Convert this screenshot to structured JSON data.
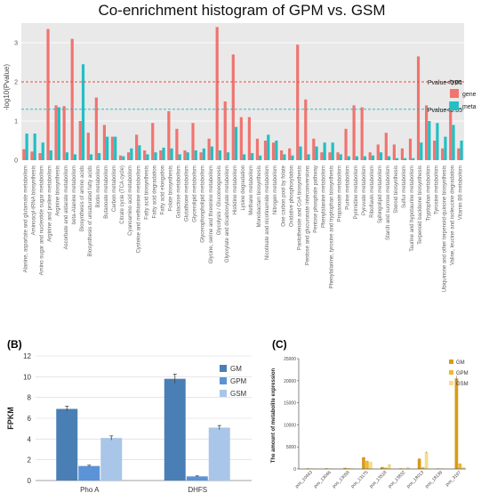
{
  "colors": {
    "gene": "#f07470",
    "meta": "#22bfc4",
    "panel_bg": "#e9e9e9",
    "line_red": "#e84a44",
    "line_teal": "#1fb3b8",
    "GM": "#4a7fb5",
    "GPM": "#5b93d6",
    "GSM": "#a9c6e8",
    "c_GM": "#d89a1a",
    "c_GPM": "#f0b82e",
    "c_GSM": "#f8dc8a"
  },
  "chart_data": [
    {
      "type": "bar",
      "panel": "A",
      "title": "Co-enrichment histogram of GPM vs. GSM",
      "ylabel": "-log10(Pvalue)",
      "xlabel": "",
      "ylim": [
        0,
        3.5
      ],
      "yticks": [
        "0",
        "1",
        "2",
        "3"
      ],
      "grid": true,
      "legend": {
        "title": "type",
        "placement": "right"
      },
      "thresholds": [
        {
          "label": "Pvalue<0.01",
          "value": 2.0,
          "color_key": "line_red"
        },
        {
          "label": "Pvalue<0.05",
          "value": 1.3,
          "color_key": "line_teal"
        }
      ],
      "categories": [
        "Alanine, aspartate and glutamate metabolism",
        "Aminoacyl-tRNA biosynthesis",
        "Amino sugar and nucleotide sugar metabolism",
        "Arginine and proline metabolism",
        "Arginine biosynthesis",
        "Ascorbate and aldarate metabolism",
        "beta-Alanine metabolism",
        "Biosynthesis of amino acids",
        "Biosynthesis of unsaturated fatty acids",
        "Biotin metabolism",
        "Butanoate metabolism",
        "Carbon metabolism",
        "Citrate cycle (TCA cycle)",
        "Cyanoamino acid metabolism",
        "Cysteine and methionine metabolism",
        "Fatty acid biosynthesis",
        "Fatty acid degradation",
        "Fatty acid elongation",
        "Folate biosynthesis",
        "Galactose metabolism",
        "Glutathione metabolism",
        "Glycerolipid metabolism",
        "Glycerophospholipid metabolism",
        "Glycine, serine and threonine metabolism",
        "Glycolysis / Gluconeogenesis",
        "Glyoxylate and dicarboxylate metabolism",
        "Histidine metabolism",
        "Lysine degradation",
        "Methane metabolism",
        "Monobactam biosynthesis",
        "Nicotinate and nicotinamide metabolism",
        "Nitrogen metabolism",
        "One carbon pool by folate",
        "Oxidative phosphorylation",
        "Pantothenate and CoA biosynthesis",
        "Pentose and glucuronate interconversions",
        "Pentose phosphate pathway",
        "Phenylalanine metabolism",
        "Phenylalanine, tyrosine and tryptophan biosynthesis",
        "Propanoate metabolism",
        "Purine metabolism",
        "Pyrimidine metabolism",
        "Pyruvate metabolism",
        "Riboflavin metabolism",
        "Sphingolipid metabolism",
        "Starch and sucrose metabolism",
        "Steroid biosynthesis",
        "Sulfur metabolism",
        "Taurine and hypotaurine metabolism",
        "Terpenoid backbone biosynthesis",
        "Tryptophan metabolism",
        "Tyrosine metabolism",
        "Ubiquinone and other terpenoid-quinone biosynthesis",
        "Valine, leucine and isoleucine degradation",
        "Vitamin B6 metabolism"
      ],
      "series": [
        {
          "name": "gene",
          "color_key": "gene",
          "values": [
            0.28,
            0.22,
            0.18,
            3.35,
            1.4,
            1.38,
            3.1,
            1.0,
            0.7,
            1.6,
            0.9,
            0.6,
            0.12,
            0.2,
            0.65,
            0.25,
            0.95,
            0.25,
            1.25,
            0.8,
            0.25,
            0.95,
            0.2,
            0.55,
            3.4,
            1.5,
            2.7,
            1.1,
            1.1,
            0.55,
            0.5,
            0.45,
            0.25,
            0.3,
            2.95,
            1.55,
            0.55,
            0.2,
            0.2,
            0.2,
            0.8,
            1.4,
            1.35,
            0.2,
            0.4,
            0.7,
            0.4,
            0.3,
            0.55,
            2.65,
            1.4,
            0.5,
            0.3,
            1.5,
            0.3
          ]
        },
        {
          "name": "meta",
          "color_key": "meta",
          "values": [
            0.68,
            0.68,
            0.45,
            0.25,
            1.35,
            0.2,
            0.15,
            2.45,
            0.15,
            0.18,
            0.6,
            0.6,
            0.1,
            0.3,
            0.38,
            0.15,
            0.2,
            0.32,
            0.3,
            0.15,
            0.2,
            0.25,
            0.3,
            0.35,
            0.25,
            0.2,
            0.85,
            0.15,
            0.18,
            0.12,
            0.65,
            0.5,
            0.15,
            0.12,
            0.35,
            0.15,
            0.35,
            0.45,
            0.45,
            0.15,
            0.1,
            0.1,
            0.1,
            0.12,
            0.2,
            0.1,
            0.05,
            0.05,
            0.05,
            0.45,
            1.0,
            0.95,
            0.6,
            0.9,
            0.5
          ]
        }
      ]
    },
    {
      "type": "bar",
      "panel": "B",
      "panel_label": "(B)",
      "ylabel": "FPKM",
      "xlabel": "",
      "ylim": [
        0,
        12
      ],
      "yticks": [
        "0",
        "2",
        "4",
        "6",
        "8",
        "10",
        "12"
      ],
      "grid": true,
      "legend": {
        "placement": "top-right"
      },
      "categories": [
        "Pho A",
        "DHFS"
      ],
      "series": [
        {
          "name": "GM",
          "color_key": "GM",
          "values": [
            6.9,
            9.8
          ],
          "errors": [
            0.25,
            0.45
          ]
        },
        {
          "name": "GPM",
          "color_key": "GPM",
          "values": [
            1.4,
            0.4
          ],
          "errors": [
            0.08,
            0.05
          ]
        },
        {
          "name": "GSM",
          "color_key": "GSM",
          "values": [
            4.1,
            5.1
          ],
          "errors": [
            0.2,
            0.2
          ]
        }
      ]
    },
    {
      "type": "bar",
      "panel": "C",
      "panel_label": "(C)",
      "ylabel": "The amount of metabolite expression",
      "xlabel": "",
      "ylim": [
        0,
        25000
      ],
      "yticks": [
        "0",
        "5000",
        "10000",
        "15000",
        "20000",
        "25000"
      ],
      "grid": false,
      "legend": {
        "placement": "top-right"
      },
      "categories": [
        "pos_10443",
        "pos_13046",
        "pos_13058",
        "pos_13175",
        "pos_13518",
        "pos_13832",
        "pos_18013",
        "pos_18139",
        "pos_3197"
      ],
      "series": [
        {
          "name": "GM",
          "color_key": "c_GM",
          "values": [
            150,
            150,
            250,
            2600,
            450,
            150,
            2300,
            120,
            20500
          ],
          "errors": [
            0,
            0,
            0,
            150,
            0,
            0,
            150,
            0,
            600
          ]
        },
        {
          "name": "GPM",
          "color_key": "c_GPM",
          "values": [
            100,
            100,
            150,
            1800,
            300,
            100,
            400,
            100,
            1200
          ],
          "errors": [
            0,
            0,
            0,
            100,
            0,
            0,
            0,
            0,
            100
          ]
        },
        {
          "name": "GSM",
          "color_key": "c_GSM",
          "values": [
            100,
            100,
            150,
            1500,
            1000,
            400,
            3800,
            100,
            400
          ],
          "errors": [
            0,
            0,
            0,
            100,
            100,
            0,
            200,
            0,
            0
          ]
        }
      ]
    }
  ]
}
